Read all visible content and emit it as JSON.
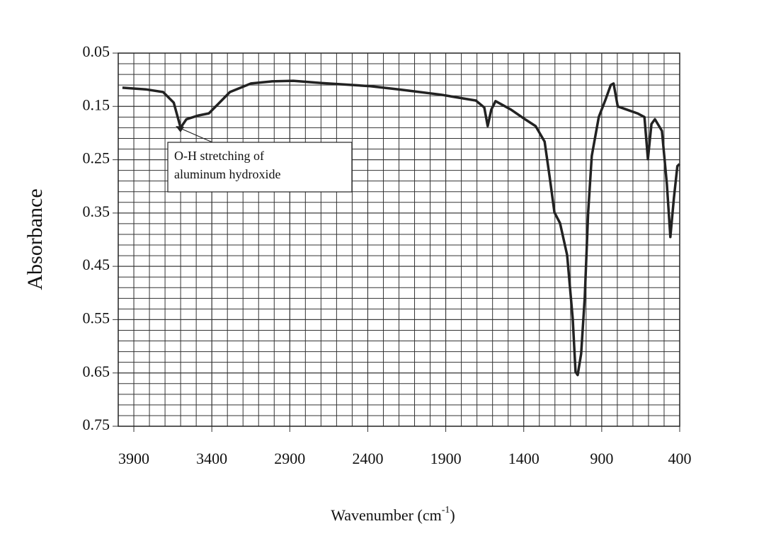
{
  "chart_data": {
    "type": "line",
    "y_label": "Absorbance",
    "x_label": {
      "text": "Wavenumber (cm",
      "sup": "-1",
      "end": ")"
    },
    "annotation": {
      "lines": [
        "O-H stretching of",
        "aluminum hydroxide"
      ]
    },
    "color": "#222222",
    "xlim": [
      4000,
      400
    ],
    "ylim": [
      0.75,
      0.05
    ],
    "xticks": [
      3900,
      3400,
      2900,
      2400,
      1900,
      1400,
      900,
      400
    ],
    "yticks": [
      0.05,
      0.15,
      0.25,
      0.35,
      0.45,
      0.55,
      0.65,
      0.75
    ],
    "grid": true,
    "xgrid": [
      3900,
      3800,
      3700,
      3600,
      3500,
      3400,
      3300,
      3200,
      3100,
      3000,
      2900,
      2800,
      2700,
      2600,
      2500,
      2400,
      2300,
      2200,
      2100,
      2000,
      1900,
      1800,
      1700,
      1600,
      1500,
      1400,
      1300,
      1200,
      1100,
      1000,
      900,
      800,
      700,
      600,
      500
    ],
    "ygrid": [
      0.07,
      0.09,
      0.11,
      0.13,
      0.15,
      0.17,
      0.19,
      0.21,
      0.23,
      0.25,
      0.27,
      0.29,
      0.31,
      0.33,
      0.35,
      0.37,
      0.39,
      0.41,
      0.43,
      0.45,
      0.47,
      0.49,
      0.51,
      0.53,
      0.55,
      0.57,
      0.59,
      0.61,
      0.63,
      0.65,
      0.67,
      0.69,
      0.71,
      0.73
    ],
    "x": [
      3973,
      3824,
      3712,
      3644,
      3600,
      3563,
      3486,
      3419,
      3351,
      3284,
      3149,
      3014,
      2878,
      2698,
      2383,
      2203,
      1932,
      1707,
      1653,
      1631,
      1608,
      1581,
      1482,
      1392,
      1324,
      1266,
      1234,
      1203,
      1167,
      1122,
      1086,
      1068,
      1054,
      1032,
      1009,
      987,
      964,
      919,
      874,
      842,
      824,
      797,
      739,
      671,
      626,
      604,
      581,
      559,
      514,
      482,
      460,
      437,
      415,
      401
    ],
    "values": [
      0.115,
      0.118,
      0.123,
      0.143,
      0.19,
      0.174,
      0.167,
      0.163,
      0.143,
      0.123,
      0.107,
      0.103,
      0.102,
      0.106,
      0.112,
      0.118,
      0.128,
      0.139,
      0.152,
      0.187,
      0.156,
      0.14,
      0.156,
      0.174,
      0.187,
      0.216,
      0.282,
      0.349,
      0.369,
      0.429,
      0.548,
      0.648,
      0.654,
      0.614,
      0.508,
      0.349,
      0.243,
      0.17,
      0.136,
      0.11,
      0.107,
      0.15,
      0.156,
      0.163,
      0.17,
      0.249,
      0.183,
      0.174,
      0.196,
      0.296,
      0.395,
      0.322,
      0.262,
      0.258
    ]
  }
}
